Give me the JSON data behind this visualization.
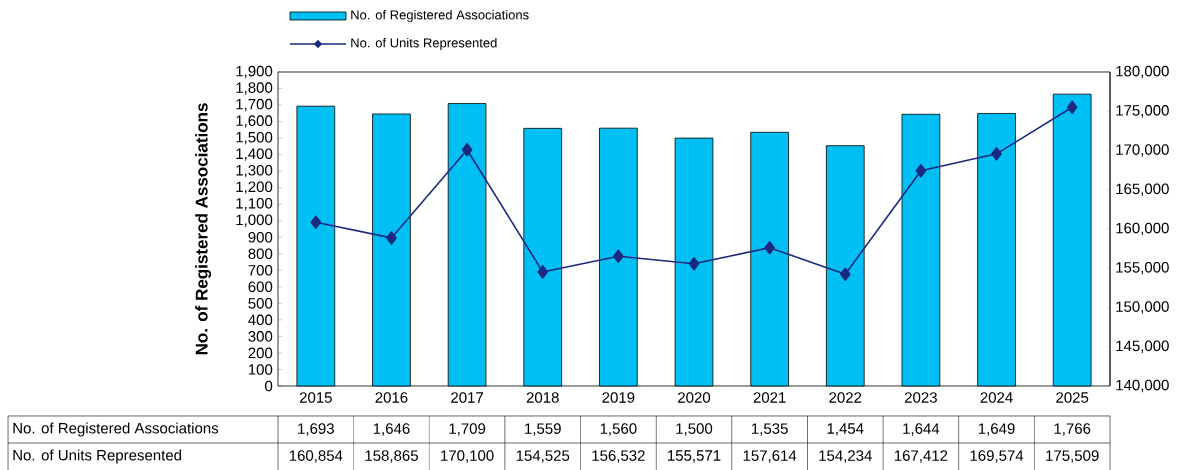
{
  "chart_data": {
    "type": "bar",
    "ylabel": "No. of Registered Associations",
    "categories": [
      "2015",
      "2016",
      "2017",
      "2018",
      "2019",
      "2020",
      "2021",
      "2022",
      "2023",
      "2024",
      "2025"
    ],
    "series": [
      {
        "name": "No. of Registered Associations",
        "color": "#00bff3",
        "values": [
          1693,
          1646,
          1709,
          1559,
          1560,
          1500,
          1535,
          1454,
          1644,
          1649,
          1766
        ],
        "value_labels": [
          "1,693",
          "1,646",
          "1,709",
          "1,559",
          "1,560",
          "1,500",
          "1,535",
          "1,454",
          "1,644",
          "1,649",
          "1,766"
        ]
      },
      {
        "name": "No. of Units Represented",
        "type": "line",
        "axis": "y2",
        "color": "#1b2a80",
        "marker": "diamond",
        "values": [
          160854,
          158865,
          170100,
          154525,
          156532,
          155571,
          157614,
          154234,
          167412,
          169574,
          175509
        ],
        "value_labels": [
          "160,854",
          "158,865",
          "170,100",
          "154,525",
          "156,532",
          "155,571",
          "157,614",
          "154,234",
          "167,412",
          "169,574",
          "175,509"
        ]
      }
    ],
    "ylim": [
      0,
      1900
    ],
    "yticks": [
      0,
      100,
      200,
      300,
      400,
      500,
      600,
      700,
      800,
      900,
      {
        "value": 1000,
        "label": "1,000"
      },
      {
        "value": 1100,
        "label": "1,100"
      },
      {
        "value": 1200,
        "label": "1,200"
      },
      {
        "value": 1300,
        "label": "1,300"
      },
      {
        "value": 1400,
        "label": "1,400"
      },
      {
        "value": 1500,
        "label": "1,500"
      },
      {
        "value": 1600,
        "label": "1,600"
      },
      {
        "value": 1700,
        "label": "1,700"
      },
      {
        "value": 1800,
        "label": "1,800"
      },
      {
        "value": 1900,
        "label": "1,900"
      }
    ],
    "y2lim": [
      140000,
      180000
    ],
    "y2ticks": [
      {
        "value": 140000,
        "label": "140,000"
      },
      {
        "value": 145000,
        "label": "145,000"
      },
      {
        "value": 150000,
        "label": "150,000"
      },
      {
        "value": 155000,
        "label": "155,000"
      },
      {
        "value": 160000,
        "label": "160,000"
      },
      {
        "value": 165000,
        "label": "165,000"
      },
      {
        "value": 170000,
        "label": "170,000"
      },
      {
        "value": 175000,
        "label": "175,000"
      },
      {
        "value": 180000,
        "label": "180,000"
      }
    ],
    "legend": "top"
  }
}
